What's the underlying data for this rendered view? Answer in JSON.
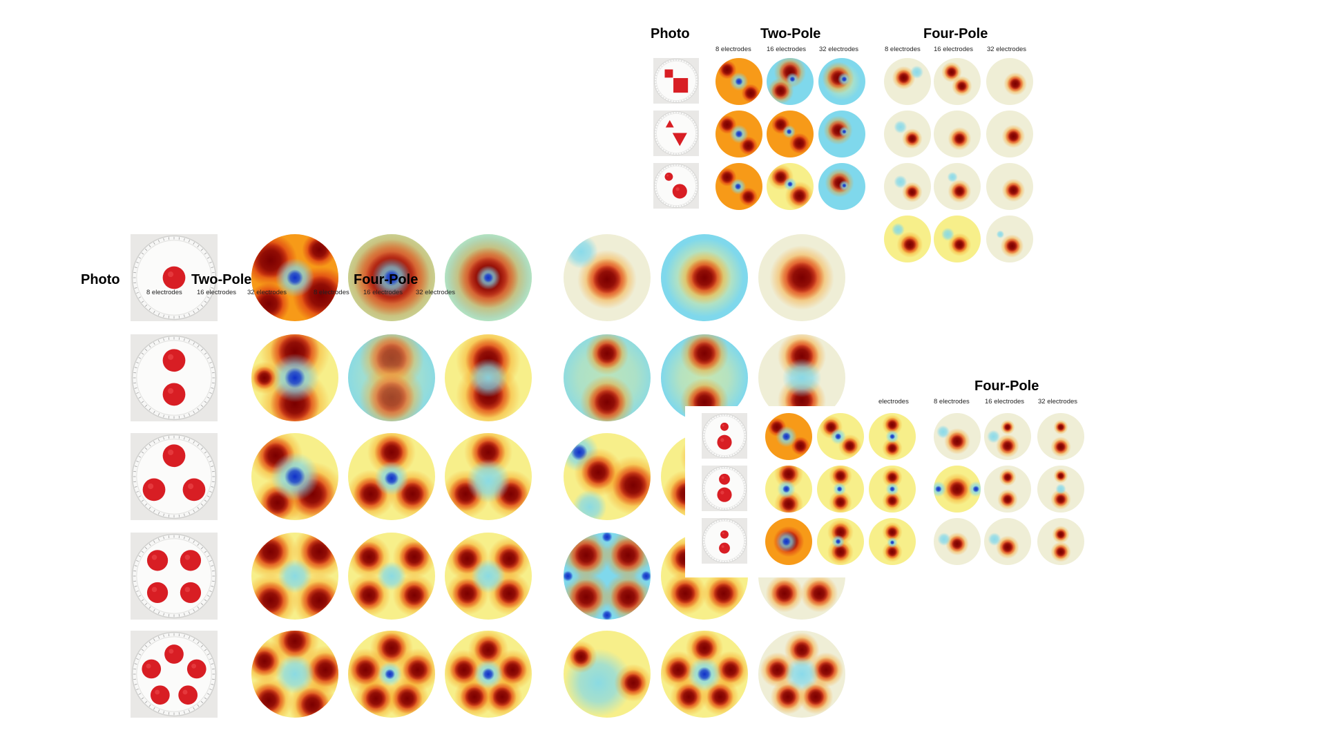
{
  "labels": {
    "photo": "Photo",
    "two_pole": "Two-Pole",
    "four_pole": "Four-Pole",
    "e8": "8 electrodes",
    "e16": "16 electrodes",
    "e32": "32 electrodes",
    "electrodes": "electrodes"
  },
  "colors": {
    "dark_red": "#7a0000",
    "red": "#d21a10",
    "orange": "#f79a18",
    "yellow": "#f7ef8a",
    "pale": "#efeed6",
    "cyan": "#7fd8ec",
    "blue": "#1030c8",
    "dark_blue": "#001890",
    "target_red": "#d81e24"
  },
  "icons": {
    "photo": "tank-photo",
    "reconstruction": "eit-reconstruction-map"
  }
}
